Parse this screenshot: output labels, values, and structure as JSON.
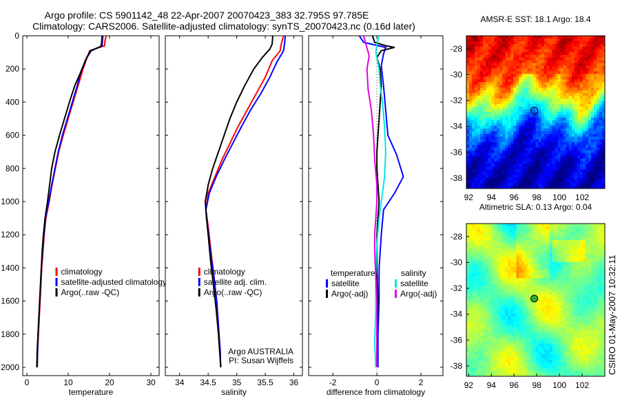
{
  "title_line1": "Argo profile: CS 5901142_48 22-Apr-2007 20070423_383 32.795S 97.785E",
  "title_line2": "Climatology: CARS2006. Satellite-adjusted climatology: synTS_20070423.nc (0.16d later)",
  "side_label": "CSIRO 01-May-2007 10:32:11",
  "chart_data": [
    {
      "type": "line",
      "xlabel": "temperature",
      "xlim": [
        -1,
        32
      ],
      "ylim": [
        0,
        2050
      ],
      "yticks": [
        0,
        200,
        400,
        600,
        800,
        1000,
        1200,
        1400,
        1600,
        1800,
        2000
      ],
      "xticks": [
        0,
        10,
        20,
        30
      ],
      "legend": {
        "position": "lower-right",
        "entries": [
          "climatology",
          "satellite-adjusted climatology",
          "Argo(..raw -QC)"
        ]
      },
      "series": [
        {
          "name": "climatology",
          "color": "#ff0000",
          "points": [
            [
              19.2,
              0
            ],
            [
              18.9,
              30
            ],
            [
              18.8,
              60
            ],
            [
              15.2,
              90
            ],
            [
              14.6,
              130
            ],
            [
              13.6,
              200
            ],
            [
              12.4,
              300
            ],
            [
              11.2,
              400
            ],
            [
              10.0,
              500
            ],
            [
              8.8,
              600
            ],
            [
              7.7,
              700
            ],
            [
              6.9,
              800
            ],
            [
              6.1,
              900
            ],
            [
              5.4,
              1000
            ],
            [
              4.6,
              1100
            ],
            [
              4.2,
              1200
            ],
            [
              3.9,
              1300
            ],
            [
              3.6,
              1400
            ],
            [
              3.4,
              1500
            ],
            [
              3.2,
              1600
            ],
            [
              3.0,
              1700
            ],
            [
              2.8,
              1800
            ],
            [
              2.6,
              1900
            ],
            [
              2.5,
              2000
            ]
          ]
        },
        {
          "name": "satellite-adjusted climatology",
          "color": "#0000ff",
          "points": [
            [
              18.4,
              0
            ],
            [
              18.3,
              30
            ],
            [
              18.2,
              60
            ],
            [
              15.6,
              90
            ],
            [
              14.3,
              140
            ],
            [
              13.0,
              220
            ],
            [
              12.2,
              300
            ],
            [
              11.0,
              400
            ],
            [
              9.8,
              500
            ],
            [
              8.6,
              600
            ],
            [
              7.6,
              700
            ],
            [
              6.8,
              800
            ],
            [
              6.0,
              900
            ],
            [
              5.3,
              1000
            ],
            [
              4.5,
              1100
            ],
            [
              4.1,
              1200
            ],
            [
              3.8,
              1300
            ],
            [
              3.5,
              1400
            ],
            [
              3.3,
              1500
            ],
            [
              3.1,
              1600
            ],
            [
              2.9,
              1700
            ],
            [
              2.7,
              1800
            ],
            [
              2.6,
              1900
            ],
            [
              2.5,
              2000
            ]
          ]
        },
        {
          "name": "Argo(..raw -QC)",
          "color": "#000000",
          "points": [
            [
              18.2,
              0
            ],
            [
              18.1,
              40
            ],
            [
              17.9,
              65
            ],
            [
              15.4,
              90
            ],
            [
              14.5,
              130
            ],
            [
              13.2,
              210
            ],
            [
              11.6,
              300
            ],
            [
              10.3,
              400
            ],
            [
              9.1,
              500
            ],
            [
              7.9,
              600
            ],
            [
              6.8,
              700
            ],
            [
              6.0,
              800
            ],
            [
              5.5,
              900
            ],
            [
              5.0,
              1000
            ],
            [
              4.4,
              1100
            ],
            [
              4.0,
              1200
            ],
            [
              3.7,
              1300
            ],
            [
              3.5,
              1400
            ],
            [
              3.3,
              1500
            ],
            [
              3.1,
              1600
            ],
            [
              2.9,
              1700
            ],
            [
              2.7,
              1800
            ],
            [
              2.5,
              1900
            ],
            [
              2.4,
              2000
            ]
          ]
        }
      ]
    },
    {
      "type": "line",
      "xlabel": "salinity",
      "xlim": [
        33.75,
        36.15
      ],
      "ylim": [
        0,
        2050
      ],
      "xticks": [
        34,
        34.5,
        35,
        35.5,
        36
      ],
      "legend": {
        "position": "lower-right",
        "entries": [
          "climatology",
          "satellite adj. clim.",
          "Argo(..raw -QC)"
        ]
      },
      "annotation": [
        "Argo AUSTRALIA",
        "PI: Susan Wijffels"
      ],
      "series": [
        {
          "name": "climatology",
          "color": "#ff0000",
          "points": [
            [
              35.82,
              0
            ],
            [
              35.78,
              50
            ],
            [
              35.76,
              90
            ],
            [
              35.62,
              150
            ],
            [
              35.5,
              250
            ],
            [
              35.34,
              350
            ],
            [
              35.18,
              450
            ],
            [
              35.02,
              550
            ],
            [
              34.88,
              650
            ],
            [
              34.74,
              750
            ],
            [
              34.62,
              850
            ],
            [
              34.5,
              950
            ],
            [
              34.46,
              1050
            ],
            [
              34.5,
              1150
            ],
            [
              34.55,
              1300
            ],
            [
              34.6,
              1450
            ],
            [
              34.65,
              1600
            ],
            [
              34.68,
              1750
            ],
            [
              34.71,
              1900
            ],
            [
              34.72,
              2000
            ]
          ]
        },
        {
          "name": "satellite adj. clim.",
          "color": "#0000ff",
          "points": [
            [
              35.85,
              0
            ],
            [
              35.84,
              40
            ],
            [
              35.82,
              90
            ],
            [
              35.7,
              160
            ],
            [
              35.58,
              250
            ],
            [
              35.42,
              350
            ],
            [
              35.24,
              450
            ],
            [
              35.08,
              550
            ],
            [
              34.93,
              650
            ],
            [
              34.78,
              750
            ],
            [
              34.64,
              850
            ],
            [
              34.52,
              950
            ],
            [
              34.46,
              1050
            ],
            [
              34.49,
              1150
            ],
            [
              34.54,
              1300
            ],
            [
              34.6,
              1450
            ],
            [
              34.65,
              1600
            ],
            [
              34.68,
              1750
            ],
            [
              34.71,
              1900
            ],
            [
              34.72,
              2000
            ]
          ]
        },
        {
          "name": "Argo(..raw -QC)",
          "color": "#000000",
          "points": [
            [
              35.63,
              0
            ],
            [
              35.62,
              50
            ],
            [
              35.58,
              80
            ],
            [
              35.45,
              130
            ],
            [
              35.3,
              200
            ],
            [
              35.14,
              300
            ],
            [
              35.0,
              400
            ],
            [
              34.88,
              500
            ],
            [
              34.78,
              600
            ],
            [
              34.68,
              700
            ],
            [
              34.58,
              800
            ],
            [
              34.5,
              900
            ],
            [
              34.45,
              1000
            ],
            [
              34.47,
              1100
            ],
            [
              34.5,
              1200
            ],
            [
              34.54,
              1350
            ],
            [
              34.59,
              1500
            ],
            [
              34.64,
              1650
            ],
            [
              34.68,
              1800
            ],
            [
              34.71,
              1950
            ],
            [
              34.72,
              2000
            ]
          ]
        }
      ]
    },
    {
      "type": "line",
      "xlabel": "difference from climatology",
      "xlim": [
        -3.1,
        3.0
      ],
      "ylim": [
        0,
        2050
      ],
      "xticks": [
        -2,
        0,
        2
      ],
      "legend": {
        "position": "lower-center",
        "left_title": "temperature",
        "right_title": "salinity",
        "entries_left": [
          "satellite",
          "Argo(-adj)"
        ],
        "entries_right": [
          "satellite",
          "Argo(-adj)"
        ]
      },
      "series": [
        {
          "name": "temperature satellite",
          "color": "#0000ff",
          "points": [
            [
              -0.8,
              0
            ],
            [
              -0.6,
              40
            ],
            [
              0.4,
              70
            ],
            [
              0.3,
              110
            ],
            [
              0.2,
              180
            ],
            [
              0.3,
              300
            ],
            [
              0.4,
              450
            ],
            [
              0.5,
              600
            ],
            [
              0.9,
              720
            ],
            [
              1.2,
              850
            ],
            [
              0.8,
              950
            ],
            [
              0.3,
              1050
            ],
            [
              0.2,
              1200
            ],
            [
              0.1,
              1400
            ],
            [
              0.1,
              1600
            ],
            [
              0.05,
              1800
            ],
            [
              0.05,
              2000
            ]
          ]
        },
        {
          "name": "temperature Argo(-adj)",
          "color": "#000000",
          "points": [
            [
              -0.2,
              0
            ],
            [
              -0.1,
              40
            ],
            [
              0.4,
              60
            ],
            [
              0.8,
              70
            ],
            [
              0.2,
              90
            ],
            [
              0.0,
              130
            ],
            [
              0.15,
              200
            ],
            [
              0.2,
              300
            ],
            [
              0.15,
              400
            ],
            [
              0.1,
              500
            ],
            [
              0.05,
              600
            ],
            [
              0.0,
              700
            ],
            [
              0.0,
              800
            ],
            [
              0.05,
              900
            ],
            [
              0.1,
              1000
            ],
            [
              0.05,
              1100
            ],
            [
              0.0,
              1200
            ],
            [
              0.0,
              1400
            ],
            [
              0.05,
              1600
            ],
            [
              0.0,
              1800
            ],
            [
              0.0,
              2000
            ]
          ]
        },
        {
          "name": "salinity satellite",
          "color": "#00e5e5",
          "points": [
            [
              0.1,
              0
            ],
            [
              0.0,
              50
            ],
            [
              -0.05,
              100
            ],
            [
              0.1,
              200
            ],
            [
              0.15,
              300
            ],
            [
              0.25,
              400
            ],
            [
              0.35,
              550
            ],
            [
              0.4,
              700
            ],
            [
              0.35,
              850
            ],
            [
              0.2,
              1000
            ],
            [
              0.1,
              1100
            ],
            [
              0.0,
              1250
            ],
            [
              -0.05,
              1450
            ],
            [
              -0.05,
              1650
            ],
            [
              -0.1,
              1850
            ],
            [
              -0.05,
              2000
            ]
          ]
        },
        {
          "name": "salinity Argo(-adj)",
          "color": "#e000e0",
          "points": [
            [
              -0.6,
              0
            ],
            [
              -0.5,
              50
            ],
            [
              -0.35,
              120
            ],
            [
              -0.45,
              200
            ],
            [
              -0.4,
              320
            ],
            [
              -0.25,
              450
            ],
            [
              -0.15,
              600
            ],
            [
              -0.1,
              750
            ],
            [
              0.0,
              900
            ],
            [
              0.0,
              1000
            ],
            [
              -0.05,
              1100
            ],
            [
              -0.1,
              1200
            ],
            [
              -0.1,
              1300
            ],
            [
              -0.05,
              1450
            ],
            [
              0.0,
              1600
            ],
            [
              0.0,
              1800
            ],
            [
              0.0,
              2000
            ]
          ]
        }
      ]
    },
    {
      "type": "heatmap",
      "title": "AMSR-E SST: 18.1 Argo: 18.4",
      "xlim": [
        91.8,
        104
      ],
      "ylim": [
        -38.8,
        -27
      ],
      "xticks": [
        92,
        94,
        96,
        98,
        100,
        102
      ],
      "yticks": [
        -28,
        -30,
        -32,
        -34,
        -36,
        -38
      ],
      "marker": {
        "lon": 97.785,
        "lat": -32.795,
        "fill": "none"
      }
    },
    {
      "type": "heatmap",
      "title": "Altimetric SLA: 0.13 Argo: 0.04",
      "xlim": [
        91.8,
        104
      ],
      "ylim": [
        -38.8,
        -27
      ],
      "xticks": [
        92,
        94,
        96,
        98,
        100,
        102
      ],
      "yticks": [
        -28,
        -30,
        -32,
        -34,
        -36,
        -38
      ],
      "marker": {
        "lon": 97.785,
        "lat": -32.795,
        "fill": "#33aa33"
      }
    }
  ]
}
